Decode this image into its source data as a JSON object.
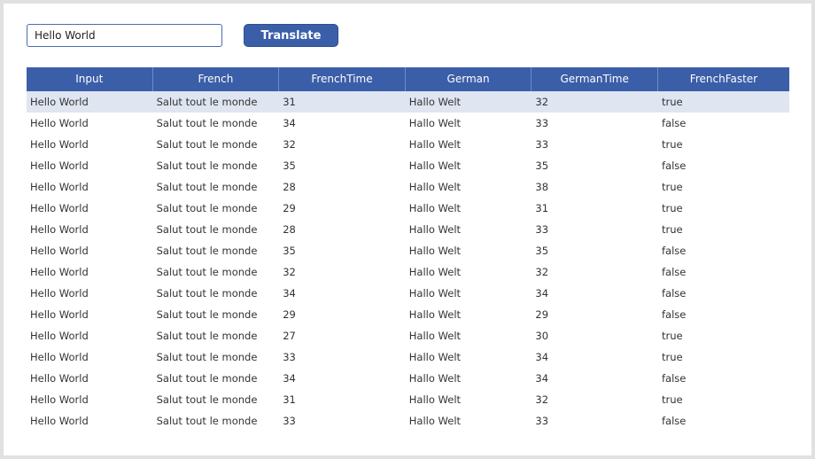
{
  "input": {
    "value": "Hello World"
  },
  "button": {
    "label": "Translate"
  },
  "colors": {
    "accent": "#3b5ea8",
    "selected_row": "#dfe5f1"
  },
  "table": {
    "columns": [
      "Input",
      "French",
      "FrenchTime",
      "German",
      "GermanTime",
      "FrenchFaster"
    ],
    "rows": [
      [
        "Hello World",
        "Salut tout le monde",
        "31",
        "Hallo Welt",
        "32",
        "true"
      ],
      [
        "Hello World",
        "Salut tout le monde",
        "34",
        "Hallo Welt",
        "33",
        "false"
      ],
      [
        "Hello World",
        "Salut tout le monde",
        "32",
        "Hallo Welt",
        "33",
        "true"
      ],
      [
        "Hello World",
        "Salut tout le monde",
        "35",
        "Hallo Welt",
        "35",
        "false"
      ],
      [
        "Hello World",
        "Salut tout le monde",
        "28",
        "Hallo Welt",
        "38",
        "true"
      ],
      [
        "Hello World",
        "Salut tout le monde",
        "29",
        "Hallo Welt",
        "31",
        "true"
      ],
      [
        "Hello World",
        "Salut tout le monde",
        "28",
        "Hallo Welt",
        "33",
        "true"
      ],
      [
        "Hello World",
        "Salut tout le monde",
        "35",
        "Hallo Welt",
        "35",
        "false"
      ],
      [
        "Hello World",
        "Salut tout le monde",
        "32",
        "Hallo Welt",
        "32",
        "false"
      ],
      [
        "Hello World",
        "Salut tout le monde",
        "34",
        "Hallo Welt",
        "34",
        "false"
      ],
      [
        "Hello World",
        "Salut tout le monde",
        "29",
        "Hallo Welt",
        "29",
        "false"
      ],
      [
        "Hello World",
        "Salut tout le monde",
        "27",
        "Hallo Welt",
        "30",
        "true"
      ],
      [
        "Hello World",
        "Salut tout le monde",
        "33",
        "Hallo Welt",
        "34",
        "true"
      ],
      [
        "Hello World",
        "Salut tout le monde",
        "34",
        "Hallo Welt",
        "34",
        "false"
      ],
      [
        "Hello World",
        "Salut tout le monde",
        "31",
        "Hallo Welt",
        "32",
        "true"
      ],
      [
        "Hello World",
        "Salut tout le monde",
        "33",
        "Hallo Welt",
        "33",
        "false"
      ]
    ]
  }
}
